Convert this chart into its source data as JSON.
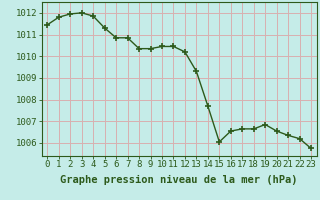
{
  "x": [
    0,
    1,
    2,
    3,
    4,
    5,
    6,
    7,
    8,
    9,
    10,
    11,
    12,
    13,
    14,
    15,
    16,
    17,
    18,
    19,
    20,
    21,
    22,
    23
  ],
  "y": [
    1011.45,
    1011.8,
    1011.95,
    1012.0,
    1011.85,
    1011.3,
    1010.85,
    1010.85,
    1010.35,
    1010.35,
    1010.45,
    1010.45,
    1010.2,
    1009.3,
    1007.7,
    1006.05,
    1006.55,
    1006.65,
    1006.65,
    1006.85,
    1006.55,
    1006.35,
    1006.2,
    1005.75
  ],
  "line_color": "#2d5a1b",
  "marker": "+",
  "marker_size": 4,
  "marker_lw": 1.2,
  "bg_color": "#c5ece8",
  "grid_color": "#d8b0b0",
  "xlabel": "Graphe pression niveau de la mer (hPa)",
  "xlabel_color": "#2d5a1b",
  "tick_color": "#2d5a1b",
  "ylim": [
    1005.4,
    1012.5
  ],
  "yticks": [
    1006,
    1007,
    1008,
    1009,
    1010,
    1011,
    1012
  ],
  "xticks": [
    0,
    1,
    2,
    3,
    4,
    5,
    6,
    7,
    8,
    9,
    10,
    11,
    12,
    13,
    14,
    15,
    16,
    17,
    18,
    19,
    20,
    21,
    22,
    23
  ],
  "spine_color": "#2d5a1b",
  "xlabel_fontsize": 7.5,
  "tick_fontsize": 6.5
}
